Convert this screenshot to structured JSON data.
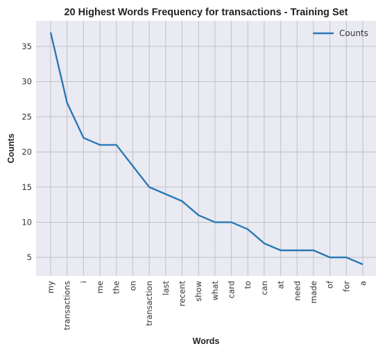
{
  "chart_data": {
    "type": "line",
    "title": "20 Highest Words Frequency for transactions - Training Set",
    "xlabel": "Words",
    "ylabel": "Counts",
    "categories": [
      "my",
      "transactions",
      "i",
      "me",
      "the",
      "on",
      "transaction",
      "last",
      "recent",
      "show",
      "what",
      "card",
      "to",
      "can",
      "at",
      "need",
      "made",
      "of",
      "for",
      "a"
    ],
    "series": [
      {
        "name": "Counts",
        "values": [
          37,
          27,
          22,
          21,
          21,
          18,
          15,
          14,
          13,
          11,
          10,
          10,
          9,
          7,
          6,
          6,
          6,
          5,
          5,
          4
        ]
      }
    ],
    "y_ticks": [
      5,
      10,
      15,
      20,
      25,
      30,
      35
    ],
    "ylim": [
      2.35,
      38.65
    ],
    "grid": true,
    "legend_position": "top-right",
    "colors": {
      "line": "#2878b5",
      "plot_background": "#eaeaf2",
      "grid": "#c0c0c6"
    }
  }
}
